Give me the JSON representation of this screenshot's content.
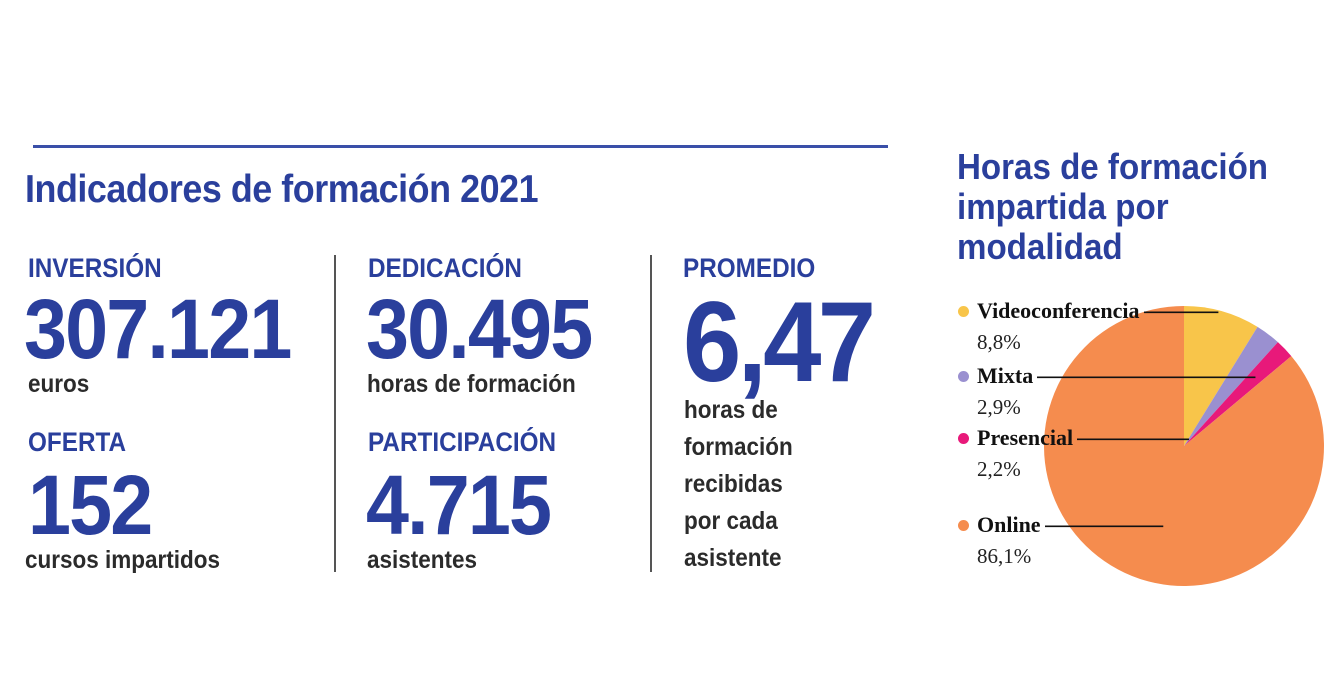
{
  "title": "Indicadores de formación 2021",
  "indicators": {
    "inversion": {
      "label": "INVERSIÓN",
      "value": "307.121",
      "unit": "euros"
    },
    "oferta": {
      "label": "OFERTA",
      "value": "152",
      "unit": "cursos impartidos"
    },
    "dedicacion": {
      "label": "DEDICACIÓN",
      "value": "30.495",
      "unit": "horas de formación"
    },
    "participacion": {
      "label": "PARTICIPACIÓN",
      "value": "4.715",
      "unit": "asistentes"
    },
    "promedio": {
      "label": "PROMEDIO",
      "value": "6,47",
      "unit_lines": [
        "horas de",
        "formación",
        "recibidas",
        "por cada",
        "asistente"
      ]
    }
  },
  "chart_data": {
    "type": "pie",
    "title": "Horas de formación impartida por modalidad",
    "title_lines": [
      "Horas de formación",
      "impartida por",
      "modalidad"
    ],
    "slices": [
      {
        "name": "Videoconferencia",
        "value": 8.8,
        "label": "8,8%",
        "color": "#f8c54a"
      },
      {
        "name": "Mixta",
        "value": 2.9,
        "label": "2,9%",
        "color": "#9a90d0"
      },
      {
        "name": "Presencial",
        "value": 2.2,
        "label": "2,2%",
        "color": "#e8197a"
      },
      {
        "name": "Online",
        "value": 86.1,
        "label": "86,1%",
        "color": "#f58c4e"
      }
    ]
  }
}
